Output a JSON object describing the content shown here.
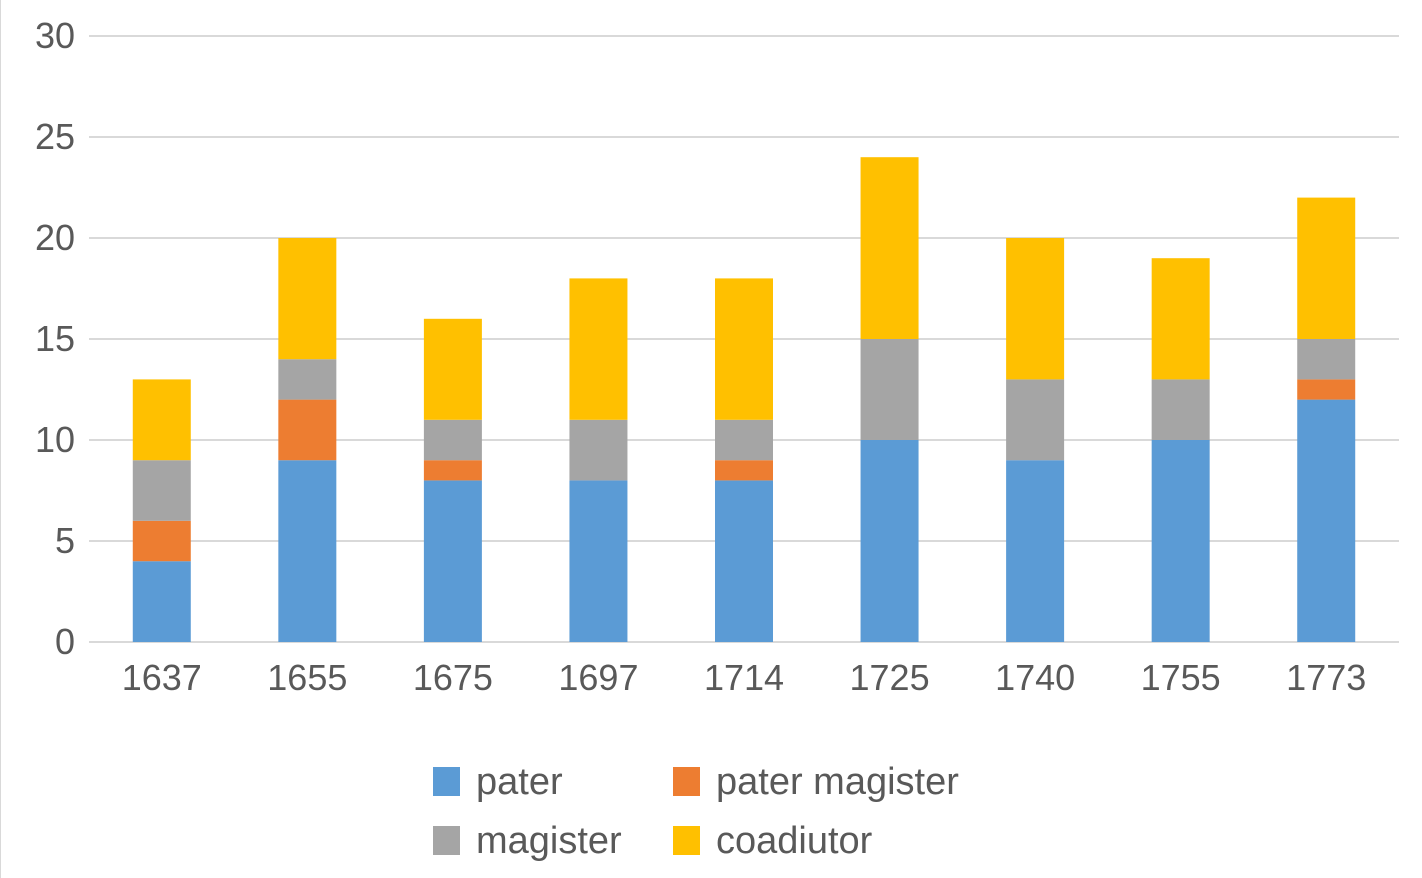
{
  "chart_data": {
    "type": "bar",
    "stacked": true,
    "categories": [
      "1637",
      "1655",
      "1675",
      "1697",
      "1714",
      "1725",
      "1740",
      "1755",
      "1773"
    ],
    "series": [
      {
        "name": "pater",
        "color": "#5b9bd5",
        "values": [
          4,
          9,
          8,
          8,
          8,
          10,
          9,
          10,
          12
        ]
      },
      {
        "name": "pater magister",
        "color": "#ed7d31",
        "values": [
          2,
          3,
          1,
          0,
          1,
          0,
          0,
          0,
          1
        ]
      },
      {
        "name": "magister",
        "color": "#a5a5a5",
        "values": [
          3,
          2,
          2,
          3,
          2,
          5,
          4,
          3,
          2
        ]
      },
      {
        "name": "coadiutor",
        "color": "#ffc000",
        "values": [
          4,
          6,
          5,
          7,
          7,
          9,
          7,
          6,
          7
        ]
      }
    ],
    "y_ticks": [
      "0",
      "5",
      "10",
      "15",
      "20",
      "25",
      "30"
    ],
    "ylim": [
      0,
      30
    ],
    "grid": true,
    "legend_position": "bottom"
  }
}
